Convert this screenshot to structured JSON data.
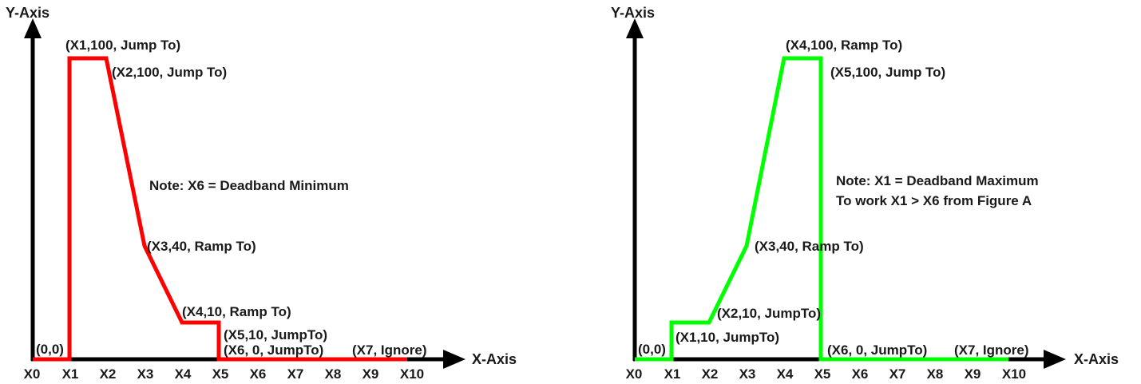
{
  "figure_left": {
    "y_axis_label": "Y-Axis",
    "x_axis_label": "X-Axis",
    "x_ticks": [
      "X0",
      "X1",
      "X2",
      "X3",
      "X4",
      "X5",
      "X6",
      "X7",
      "X8",
      "X9",
      "X10"
    ],
    "line_color": "#ff0000",
    "points": [
      {
        "label": "(0,0)"
      },
      {
        "label": "(X1,100, Jump To)"
      },
      {
        "label": "(X2,100, Jump To)"
      },
      {
        "label": "(X3,40, Ramp To)"
      },
      {
        "label": "(X4,10, Ramp To)"
      },
      {
        "label": "(X5,10, JumpTo)"
      },
      {
        "label": "(X6, 0, JumpTo)"
      },
      {
        "label": "(X7, Ignore)"
      }
    ],
    "note_lines": [
      "Note: X6 = Deadband Minimum"
    ]
  },
  "figure_right": {
    "y_axis_label": "Y-Axis",
    "x_axis_label": "X-Axis",
    "x_ticks": [
      "X0",
      "X1",
      "X2",
      "X3",
      "X4",
      "X5",
      "X6",
      "X7",
      "X8",
      "X9",
      "X10"
    ],
    "line_color": "#00ff00",
    "points": [
      {
        "label": "(0,0)"
      },
      {
        "label": "(X1,10, JumpTo)"
      },
      {
        "label": "(X2,10, JumpTo)"
      },
      {
        "label": "(X3,40, Ramp To)"
      },
      {
        "label": "(X4,100, Ramp To)"
      },
      {
        "label": "(X5,100, Jump To)"
      },
      {
        "label": "(X6, 0, JumpTo)"
      },
      {
        "label": "(X7, Ignore)"
      }
    ],
    "note_lines": [
      "Note: X1 = Deadband Maximum",
      "To work X1 > X6 from Figure A"
    ]
  }
}
